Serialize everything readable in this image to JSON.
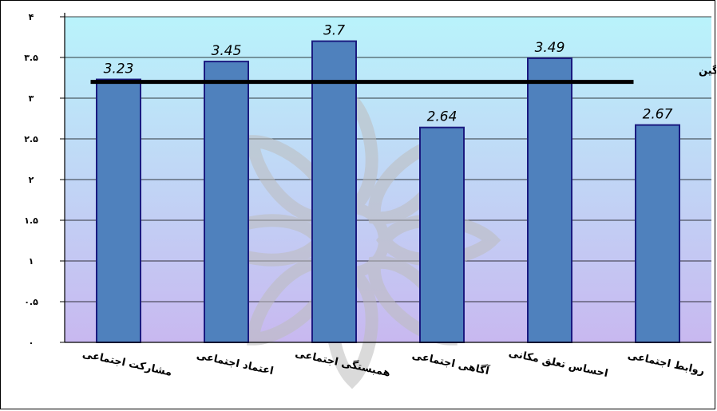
{
  "chart_data": {
    "type": "bar",
    "categories": [
      "مشارکت اجتماعی",
      "اعتماد اجتماعی",
      "همبستگی اجتماعی",
      "آگاهی اجتماعی",
      "احساس تعلق مکانی",
      "روابط اجتماعی"
    ],
    "values": [
      3.23,
      3.45,
      3.7,
      2.64,
      3.49,
      2.67
    ],
    "data_labels": [
      "3.23",
      "3.45",
      "3.7",
      "2.64",
      "3.49",
      "2.67"
    ],
    "ylim": [
      0,
      4
    ],
    "y_ticks": [
      0,
      0.5,
      1,
      1.5,
      2,
      2.5,
      3,
      3.5,
      4
    ],
    "y_tick_labels": [
      "۰",
      "۰.۵",
      "۱",
      "۱.۵",
      "۲",
      "۲.۵",
      "۳",
      "۳.۵",
      "۴"
    ],
    "reference_line": {
      "label": "خط میانگین",
      "value": 3.2
    },
    "grid": true,
    "colors": {
      "bar_fill": "#4f81bd",
      "bar_stroke": "#1a1a80",
      "plot_top": "#b9f3fb",
      "plot_bottom": "#c8b8f0",
      "reference_line": "#000000",
      "watermark": "#bdbdbd"
    },
    "title": "",
    "xlabel": "",
    "ylabel": ""
  }
}
